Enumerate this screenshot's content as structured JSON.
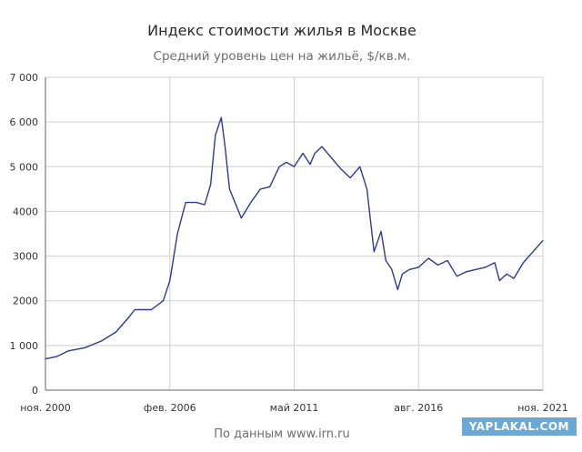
{
  "title": "Индекс стоимости жилья в Москве",
  "subtitle": "Средний уровень цен на жильё, $/кв.м.",
  "source": "По данным www.irn.ru",
  "watermark": "YAPLAKAL.COM",
  "colors": {
    "line": "#2f3a8c",
    "grid": "#cfcfcf",
    "axis": "#666666"
  },
  "chart_data": {
    "type": "line",
    "title": "Индекс стоимости жилья в Москве",
    "subtitle": "Средний уровень цен на жильё, $/кв.м.",
    "ylim": [
      0,
      7000
    ],
    "yticks": [
      0,
      1000,
      2000,
      3000,
      4000,
      5000,
      6000,
      7000
    ],
    "ytick_labels": [
      "0",
      "1 000",
      "2000",
      "3000",
      "4000",
      "5 000",
      "6 000",
      "7 000"
    ],
    "xlim": [
      2000.83,
      2021.83
    ],
    "xticks": [
      2000.83,
      2006.08,
      2011.33,
      2016.58,
      2021.83
    ],
    "xtick_labels": [
      "ноя. 2000",
      "фев. 2006",
      "май 2011",
      "авг. 2016",
      "ноя. 2021"
    ],
    "grid": true,
    "series": [
      {
        "x": [
          2000.83,
          2001.3,
          2001.8,
          2002.5,
          2003.2,
          2003.8,
          2004.3,
          2004.6,
          2005.3,
          2005.8,
          2006.08,
          2006.4,
          2006.75,
          2007.2,
          2007.55,
          2007.8,
          2008.0,
          2008.25,
          2008.4,
          2008.6,
          2009.1,
          2009.5,
          2009.9,
          2010.3,
          2010.7,
          2011.0,
          2011.33,
          2011.7,
          2012.0,
          2012.2,
          2012.5,
          2012.9,
          2013.3,
          2013.7,
          2014.1,
          2014.4,
          2014.7,
          2015.0,
          2015.2,
          2015.45,
          2015.7,
          2015.9,
          2016.2,
          2016.58,
          2017.0,
          2017.4,
          2017.8,
          2018.2,
          2018.6,
          2019.0,
          2019.4,
          2019.8,
          2020.0,
          2020.3,
          2020.6,
          2021.0,
          2021.5,
          2021.83
        ],
        "y": [
          700,
          750,
          880,
          950,
          1100,
          1300,
          1600,
          1800,
          1800,
          2000,
          2450,
          3500,
          4200,
          4200,
          4150,
          4600,
          5700,
          6100,
          5500,
          4500,
          3850,
          4200,
          4500,
          4550,
          5000,
          5100,
          5000,
          5300,
          5050,
          5300,
          5450,
          5200,
          4950,
          4750,
          5000,
          4500,
          3100,
          3550,
          2900,
          2700,
          2250,
          2600,
          2700,
          2750,
          2950,
          2800,
          2900,
          2550,
          2650,
          2700,
          2750,
          2850,
          2450,
          2600,
          2500,
          2850,
          3150,
          3350
        ]
      }
    ]
  }
}
